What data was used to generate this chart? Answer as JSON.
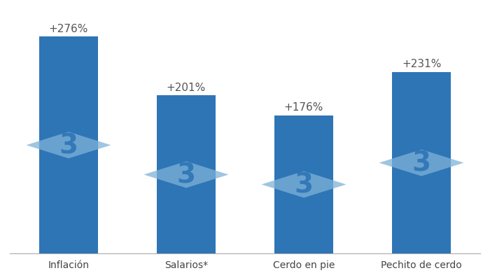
{
  "categories": [
    "Inflación",
    "Salarios*",
    "Cerdo en pie",
    "Pechito de cerdo"
  ],
  "values": [
    276,
    201,
    176,
    231
  ],
  "labels": [
    "+276%",
    "+201%",
    "+176%",
    "+231%"
  ],
  "bar_color": "#2E75B6",
  "watermark_diamond_color": "#7EB2D8",
  "watermark_text_color": "#2E75B6",
  "background_color": "#FFFFFF",
  "label_fontsize": 11,
  "tick_fontsize": 10,
  "figsize": [
    7.0,
    4.0
  ],
  "dpi": 100,
  "ylim": [
    0,
    310
  ]
}
